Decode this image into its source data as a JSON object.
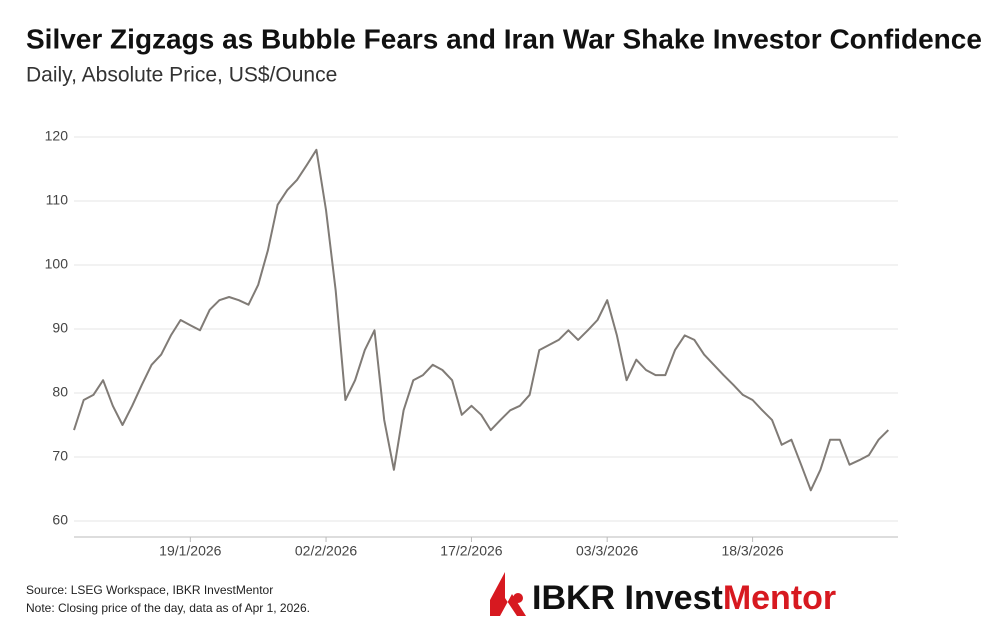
{
  "chart_data": {
    "type": "line",
    "title": "Silver Zigzags as Bubble Fears and Iran War Shake Investor Confidence",
    "subtitle": "Daily, Absolute Price, US$/Ounce",
    "source": "Source: LSEG Workspace, IBKR InvestMentor",
    "note": "Note: Closing price of the day, data as of Apr 1, 2026.",
    "logo": {
      "brand": "IBKR Invest",
      "accent": "Mentor"
    },
    "x": [
      "2026-01-07",
      "2026-01-08",
      "2026-01-09",
      "2026-01-10",
      "2026-01-11",
      "2026-01-12",
      "2026-01-13",
      "2026-01-14",
      "2026-01-15",
      "2026-01-16",
      "2026-01-17",
      "2026-01-18",
      "2026-01-19",
      "2026-01-20",
      "2026-01-21",
      "2026-01-22",
      "2026-01-23",
      "2026-01-24",
      "2026-01-25",
      "2026-01-26",
      "2026-01-27",
      "2026-01-28",
      "2026-01-29",
      "2026-01-30",
      "2026-01-31",
      "2026-02-01",
      "2026-02-02",
      "2026-02-03",
      "2026-02-04",
      "2026-02-05",
      "2026-02-06",
      "2026-02-07",
      "2026-02-08",
      "2026-02-09",
      "2026-02-10",
      "2026-02-11",
      "2026-02-12",
      "2026-02-13",
      "2026-02-14",
      "2026-02-15",
      "2026-02-16",
      "2026-02-17",
      "2026-02-18",
      "2026-02-19",
      "2026-02-20",
      "2026-02-21",
      "2026-02-22",
      "2026-02-23",
      "2026-02-24",
      "2026-02-25",
      "2026-02-26",
      "2026-02-27",
      "2026-02-28",
      "2026-03-01",
      "2026-03-02",
      "2026-03-03",
      "2026-03-04",
      "2026-03-05",
      "2026-03-06",
      "2026-03-07",
      "2026-03-08",
      "2026-03-09",
      "2026-03-10",
      "2026-03-11",
      "2026-03-12",
      "2026-03-13",
      "2026-03-14",
      "2026-03-15",
      "2026-03-16",
      "2026-03-17",
      "2026-03-18",
      "2026-03-19",
      "2026-03-20",
      "2026-03-21",
      "2026-03-22",
      "2026-03-23",
      "2026-03-24",
      "2026-03-25",
      "2026-03-26",
      "2026-03-27",
      "2026-03-28",
      "2026-03-29",
      "2026-03-30",
      "2026-03-31",
      "2026-04-01"
    ],
    "series": [
      {
        "name": "Silver",
        "color": "#807b76",
        "values": [
          74.2,
          78.9,
          79.7,
          82,
          78,
          75,
          78,
          81.3,
          84.4,
          86,
          89,
          91.4,
          90.6,
          89.8,
          93,
          94.5,
          95,
          94.5,
          93.8,
          96.9,
          102.3,
          109.4,
          111.7,
          113.3,
          115.6,
          118,
          108.6,
          96,
          78.9,
          82,
          86.7,
          89.8,
          75.8,
          68,
          77.3,
          82,
          82.8,
          84.4,
          83.6,
          82,
          76.6,
          78,
          76.6,
          74.2,
          75.8,
          77.3,
          78,
          79.7,
          86.7,
          87.5,
          88.3,
          89.8,
          88.3,
          89.8,
          91.4,
          94.5,
          89,
          82,
          85.2,
          83.6,
          82.8,
          82.8,
          86.7,
          89,
          88.3,
          86,
          84.4,
          82.8,
          81.3,
          79.7,
          78.9,
          77.3,
          75.8,
          71.9,
          72.7,
          68.8,
          64.8,
          68,
          72.7,
          72.7,
          68.8,
          69.5,
          70.3,
          72.7,
          74.2
        ]
      }
    ],
    "xlim": [
      "2026-01-07",
      "2026-04-02"
    ],
    "xticks": [
      {
        "value": "2026-01-19",
        "label": "19/1/2026"
      },
      {
        "value": "2026-02-02",
        "label": "02/2/2026"
      },
      {
        "value": "2026-02-17",
        "label": "17/2/2026"
      },
      {
        "value": "2026-03-03",
        "label": "03/3/2026"
      },
      {
        "value": "2026-03-18",
        "label": "18/3/2026"
      }
    ],
    "ylim": [
      57.5,
      125
    ],
    "yticks": [
      60,
      70,
      80,
      90,
      100,
      110,
      120
    ],
    "grid": true
  }
}
